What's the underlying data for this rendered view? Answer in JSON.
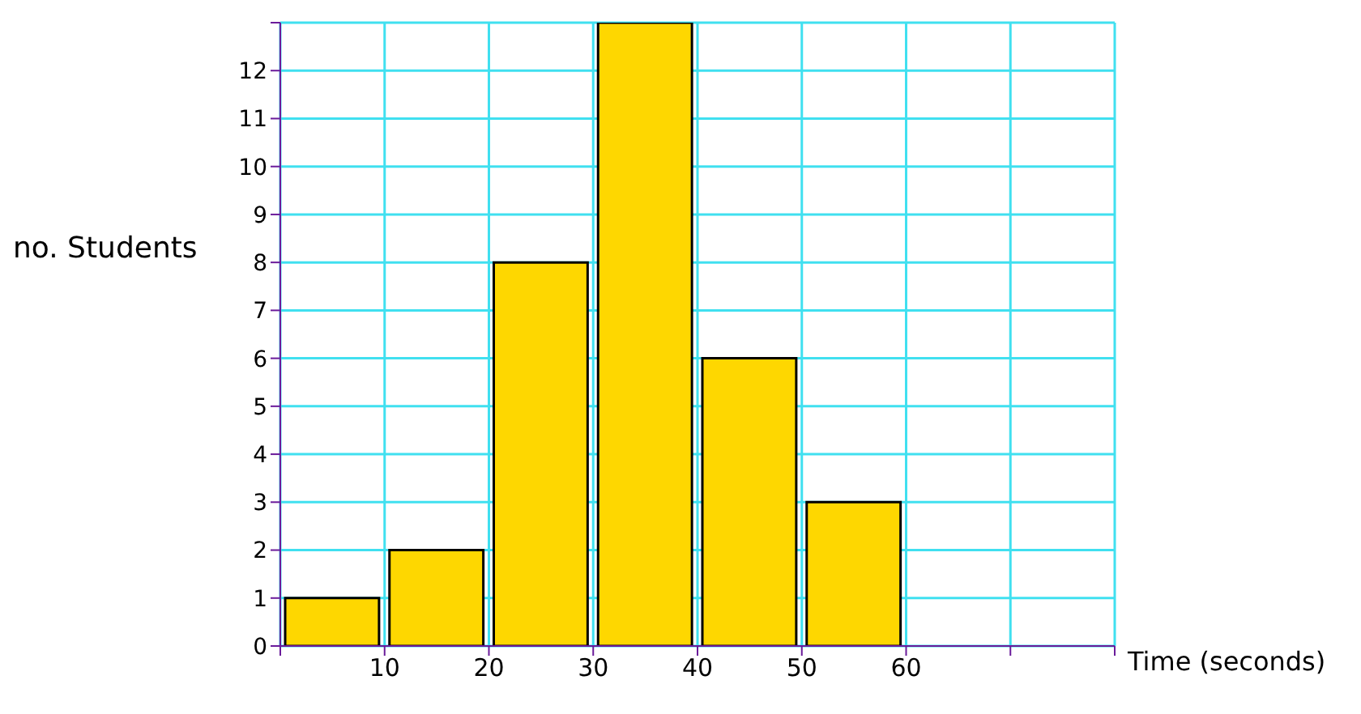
{
  "chart_data": {
    "type": "histogram",
    "xlabel": "Time (seconds)",
    "ylabel": "no. Students",
    "bins": [
      0,
      10,
      20,
      30,
      40,
      50,
      60
    ],
    "values": [
      1,
      2,
      8,
      13,
      6,
      3
    ],
    "color": "#fed700",
    "xlim": [
      0,
      80
    ],
    "xticks": [
      {
        "value": 0,
        "label": null
      },
      10,
      20,
      30,
      40,
      50,
      60,
      {
        "value": 70,
        "label": null
      },
      {
        "value": 80,
        "label": null
      }
    ],
    "ylim": [
      0,
      13
    ],
    "yticks": [
      0,
      1,
      2,
      3,
      4,
      5,
      6,
      7,
      8,
      9,
      10,
      11,
      12,
      {
        "value": 13,
        "label": null
      }
    ],
    "grid": true
  }
}
